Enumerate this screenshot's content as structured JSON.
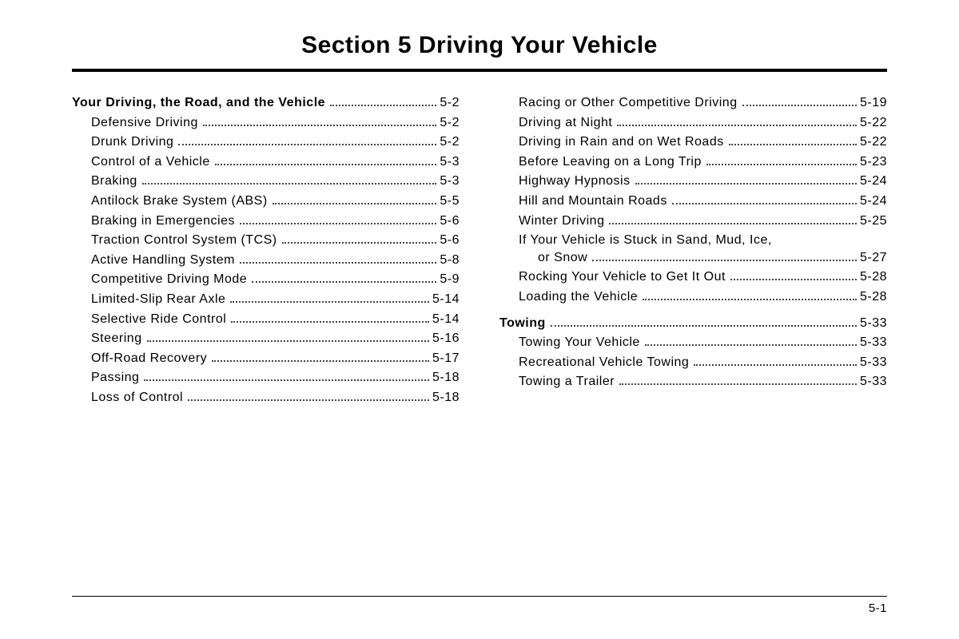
{
  "title": "Section  5      Driving Your Vehicle",
  "page_number": "5-1",
  "columns": {
    "left": [
      {
        "label": "Your Driving, the Road, and the Vehicle",
        "page": "5-2",
        "bold": true,
        "indent": 0
      },
      {
        "label": "Defensive Driving",
        "page": "5-2",
        "bold": false,
        "indent": 1
      },
      {
        "label": "Drunk Driving",
        "page": "5-2",
        "bold": false,
        "indent": 1
      },
      {
        "label": "Control of a Vehicle",
        "page": "5-3",
        "bold": false,
        "indent": 1
      },
      {
        "label": "Braking",
        "page": "5-3",
        "bold": false,
        "indent": 1
      },
      {
        "label": "Antilock Brake System (ABS)",
        "page": "5-5",
        "bold": false,
        "indent": 1
      },
      {
        "label": "Braking in Emergencies",
        "page": "5-6",
        "bold": false,
        "indent": 1
      },
      {
        "label": "Traction Control System (TCS)",
        "page": "5-6",
        "bold": false,
        "indent": 1
      },
      {
        "label": "Active Handling System",
        "page": "5-8",
        "bold": false,
        "indent": 1
      },
      {
        "label": "Competitive Driving Mode",
        "page": "5-9",
        "bold": false,
        "indent": 1
      },
      {
        "label": "Limited-Slip Rear Axle",
        "page": "5-14",
        "bold": false,
        "indent": 1
      },
      {
        "label": "Selective Ride Control",
        "page": "5-14",
        "bold": false,
        "indent": 1
      },
      {
        "label": "Steering",
        "page": "5-16",
        "bold": false,
        "indent": 1
      },
      {
        "label": "Off-Road Recovery",
        "page": "5-17",
        "bold": false,
        "indent": 1
      },
      {
        "label": "Passing",
        "page": "5-18",
        "bold": false,
        "indent": 1
      },
      {
        "label": "Loss of Control",
        "page": "5-18",
        "bold": false,
        "indent": 1
      }
    ],
    "right": [
      {
        "label": "Racing or Other Competitive Driving",
        "page": "5-19",
        "bold": false,
        "indent": 1
      },
      {
        "label": "Driving at Night",
        "page": "5-22",
        "bold": false,
        "indent": 1
      },
      {
        "label": "Driving in Rain and on Wet Roads",
        "page": "5-22",
        "bold": false,
        "indent": 1
      },
      {
        "label": "Before Leaving on a Long Trip",
        "page": "5-23",
        "bold": false,
        "indent": 1
      },
      {
        "label": "Highway Hypnosis",
        "page": "5-24",
        "bold": false,
        "indent": 1
      },
      {
        "label": "Hill and Mountain Roads",
        "page": "5-24",
        "bold": false,
        "indent": 1
      },
      {
        "label": "Winter Driving",
        "page": "5-25",
        "bold": false,
        "indent": 1
      },
      {
        "label": "If Your Vehicle is Stuck in Sand, Mud, Ice,",
        "page": "",
        "bold": false,
        "indent": 1,
        "noleader": true
      },
      {
        "label": "or Snow",
        "page": "5-27",
        "bold": false,
        "indent": 2
      },
      {
        "label": "Rocking Your Vehicle to Get It Out",
        "page": "5-28",
        "bold": false,
        "indent": 1
      },
      {
        "label": "Loading the Vehicle",
        "page": "5-28",
        "bold": false,
        "indent": 1
      },
      {
        "gap": true
      },
      {
        "label": "Towing",
        "page": "5-33",
        "bold": true,
        "indent": 0
      },
      {
        "label": "Towing Your Vehicle",
        "page": "5-33",
        "bold": false,
        "indent": 1
      },
      {
        "label": "Recreational Vehicle Towing",
        "page": "5-33",
        "bold": false,
        "indent": 1
      },
      {
        "label": "Towing a Trailer",
        "page": "5-33",
        "bold": false,
        "indent": 1
      }
    ]
  }
}
